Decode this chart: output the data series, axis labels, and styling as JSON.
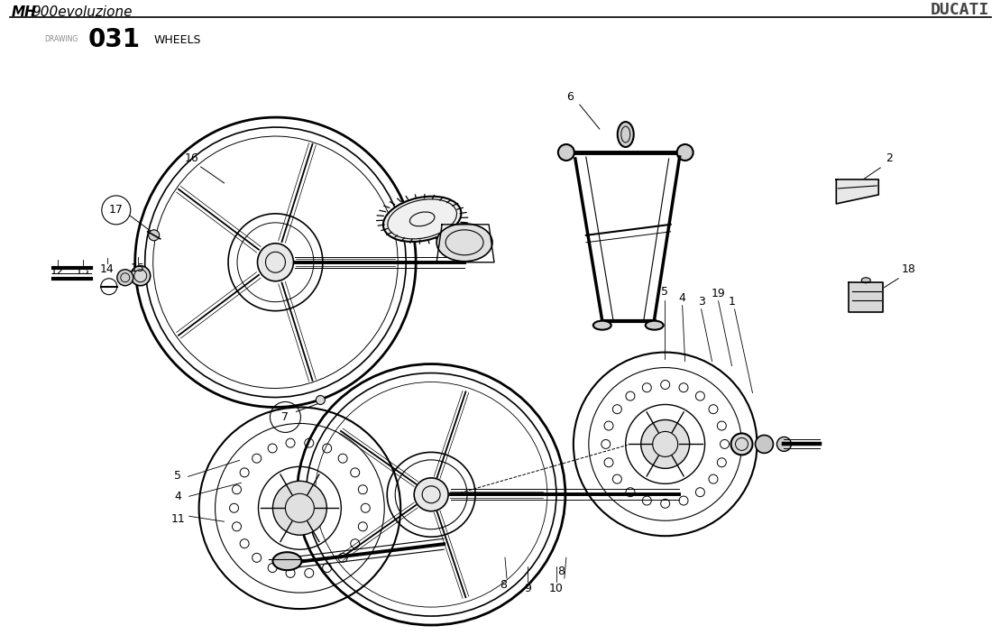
{
  "title_left_bold": "MH",
  "title_left_regular": "900evoluzione",
  "title_right": "DUCATI",
  "drawing_label": "DRAWING",
  "drawing_number": "031",
  "drawing_title": "WHEELS",
  "bg_color": "#ffffff",
  "line_color": "#000000",
  "gray_color": "#555555",
  "light_gray": "#aaaaaa"
}
